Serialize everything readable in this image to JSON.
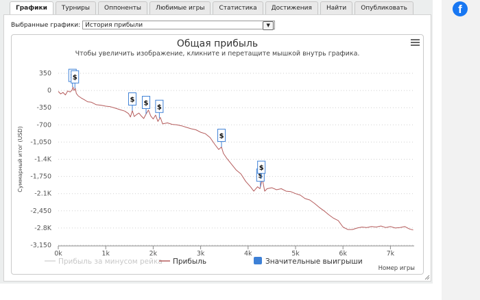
{
  "tabs": [
    "Графики",
    "Турниры",
    "Оппоненты",
    "Любимые игры",
    "Статистика",
    "Достижения",
    "Найти",
    "Опубликовать"
  ],
  "active_tab": 0,
  "selector": {
    "label": "Выбранные графики:",
    "value": "История прибыли"
  },
  "social": {
    "icon": "facebook-icon",
    "glyph": "f",
    "color": "#1877f2"
  },
  "chart_data": {
    "type": "line",
    "title": "Общая прибыль",
    "subtitle": "Чтобы увеличить изображение, кликните и перетащите мышкой внутрь графика.",
    "xlabel": "Номер игры",
    "ylabel": "Суммарный итог (USD)",
    "xlim": [
      0,
      7500
    ],
    "ylim": [
      -3150,
      350
    ],
    "x_ticks": [
      0,
      1000,
      2000,
      3000,
      4000,
      5000,
      6000,
      7000
    ],
    "x_tick_labels": [
      "0k",
      "1k",
      "2k",
      "3k",
      "4k",
      "5k",
      "6k",
      "7k"
    ],
    "y_ticks": [
      350,
      0,
      -350,
      -700,
      -1050,
      -1400,
      -1750,
      -2100,
      -2450,
      -2800,
      -3150
    ],
    "y_tick_labels": [
      "350",
      "0",
      "-350",
      "-700",
      "-1,050",
      "-1.4K",
      "-1,750",
      "-2.1K",
      "-2,450",
      "-2.8K",
      "-3,150"
    ],
    "grid": true,
    "legend_position": "bottom",
    "series": [
      {
        "name": "Прибыль за минусом рейка",
        "color": "#d6d6d6",
        "values": []
      },
      {
        "name": "Прибыль",
        "color": "#b45a5a",
        "points": [
          [
            0,
            -20
          ],
          [
            50,
            -70
          ],
          [
            100,
            -40
          ],
          [
            150,
            -90
          ],
          [
            200,
            -10
          ],
          [
            250,
            -30
          ],
          [
            290,
            10
          ],
          [
            310,
            70
          ],
          [
            330,
            0
          ],
          [
            360,
            40
          ],
          [
            380,
            -60
          ],
          [
            420,
            -110
          ],
          [
            480,
            -150
          ],
          [
            550,
            -190
          ],
          [
            620,
            -230
          ],
          [
            700,
            -240
          ],
          [
            800,
            -290
          ],
          [
            900,
            -300
          ],
          [
            1000,
            -320
          ],
          [
            1100,
            -330
          ],
          [
            1200,
            -360
          ],
          [
            1300,
            -390
          ],
          [
            1400,
            -420
          ],
          [
            1480,
            -470
          ],
          [
            1520,
            -540
          ],
          [
            1560,
            -410
          ],
          [
            1600,
            -530
          ],
          [
            1650,
            -490
          ],
          [
            1700,
            -460
          ],
          [
            1750,
            -520
          ],
          [
            1800,
            -570
          ],
          [
            1850,
            -480
          ],
          [
            1900,
            -400
          ],
          [
            1950,
            -520
          ],
          [
            2000,
            -580
          ],
          [
            2050,
            -500
          ],
          [
            2100,
            -630
          ],
          [
            2150,
            -550
          ],
          [
            2200,
            -680
          ],
          [
            2300,
            -660
          ],
          [
            2400,
            -690
          ],
          [
            2500,
            -700
          ],
          [
            2600,
            -720
          ],
          [
            2700,
            -750
          ],
          [
            2800,
            -780
          ],
          [
            2900,
            -800
          ],
          [
            3000,
            -850
          ],
          [
            3100,
            -880
          ],
          [
            3200,
            -960
          ],
          [
            3300,
            -1100
          ],
          [
            3380,
            -1200
          ],
          [
            3440,
            -1150
          ],
          [
            3480,
            -1280
          ],
          [
            3550,
            -1380
          ],
          [
            3650,
            -1500
          ],
          [
            3750,
            -1620
          ],
          [
            3850,
            -1700
          ],
          [
            3950,
            -1850
          ],
          [
            4050,
            -1960
          ],
          [
            4120,
            -2050
          ],
          [
            4200,
            -1960
          ],
          [
            4250,
            -2000
          ],
          [
            4300,
            -1800
          ],
          [
            4350,
            -2050
          ],
          [
            4400,
            -2000
          ],
          [
            4500,
            -1980
          ],
          [
            4600,
            -2020
          ],
          [
            4700,
            -2000
          ],
          [
            4800,
            -2050
          ],
          [
            4900,
            -2060
          ],
          [
            5000,
            -2100
          ],
          [
            5100,
            -2130
          ],
          [
            5200,
            -2200
          ],
          [
            5300,
            -2230
          ],
          [
            5400,
            -2300
          ],
          [
            5500,
            -2380
          ],
          [
            5600,
            -2450
          ],
          [
            5700,
            -2530
          ],
          [
            5800,
            -2600
          ],
          [
            5900,
            -2650
          ],
          [
            6000,
            -2780
          ],
          [
            6100,
            -2830
          ],
          [
            6200,
            -2830
          ],
          [
            6300,
            -2800
          ],
          [
            6400,
            -2780
          ],
          [
            6500,
            -2790
          ],
          [
            6600,
            -2770
          ],
          [
            6700,
            -2780
          ],
          [
            6800,
            -2760
          ],
          [
            6900,
            -2790
          ],
          [
            7000,
            -2770
          ],
          [
            7100,
            -2800
          ],
          [
            7200,
            -2790
          ],
          [
            7300,
            -2770
          ],
          [
            7400,
            -2820
          ],
          [
            7480,
            -2840
          ]
        ]
      },
      {
        "name": "Значительные выигрыши",
        "color": "#3d80d6",
        "values": []
      }
    ],
    "markers": [
      {
        "label": "$",
        "x": 300,
        "y": 70
      },
      {
        "label": "$",
        "x": 350,
        "y": 40
      },
      {
        "label": "$",
        "x": 1560,
        "y": -410
      },
      {
        "label": "$",
        "x": 1850,
        "y": -480
      },
      {
        "label": "$",
        "x": 2130,
        "y": -560
      },
      {
        "label": "$",
        "x": 3440,
        "y": -1150
      },
      {
        "label": "$",
        "x": 4260,
        "y": -1960
      },
      {
        "label": "$",
        "x": 4280,
        "y": -1800
      }
    ]
  }
}
